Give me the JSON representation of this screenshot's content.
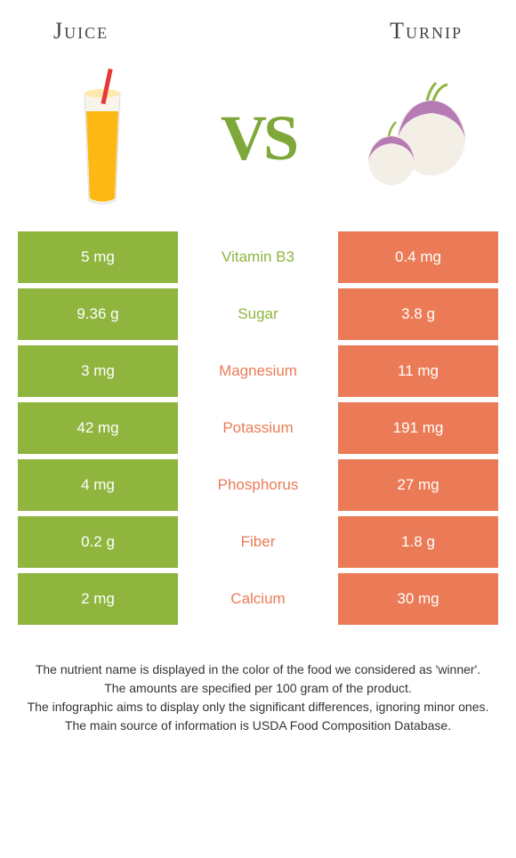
{
  "header": {
    "left_title": "Juice",
    "right_title": "Turnip"
  },
  "vs_label": "VS",
  "colors": {
    "left_bg": "#8fb53f",
    "right_bg": "#eb7b56",
    "left_text": "#8fb53f",
    "right_text": "#eb7b56",
    "vs_color": "#7fa83a"
  },
  "rows": [
    {
      "left": "5 mg",
      "mid": "Vitamin B3",
      "right": "0.4 mg",
      "winner": "left"
    },
    {
      "left": "9.36 g",
      "mid": "Sugar",
      "right": "3.8 g",
      "winner": "left"
    },
    {
      "left": "3 mg",
      "mid": "Magnesium",
      "right": "11 mg",
      "winner": "right"
    },
    {
      "left": "42 mg",
      "mid": "Potassium",
      "right": "191 mg",
      "winner": "right"
    },
    {
      "left": "4 mg",
      "mid": "Phosphorus",
      "right": "27 mg",
      "winner": "right"
    },
    {
      "left": "0.2 g",
      "mid": "Fiber",
      "right": "1.8 g",
      "winner": "right"
    },
    {
      "left": "2 mg",
      "mid": "Calcium",
      "right": "30 mg",
      "winner": "right"
    }
  ],
  "footer": {
    "line1": "The nutrient name is displayed in the color of the food we considered as 'winner'.",
    "line2": "The amounts are specified per 100 gram of the product.",
    "line3": "The infographic aims to display only the significant differences, ignoring minor ones.",
    "line4": "The main source of information is USDA Food Composition Database."
  }
}
